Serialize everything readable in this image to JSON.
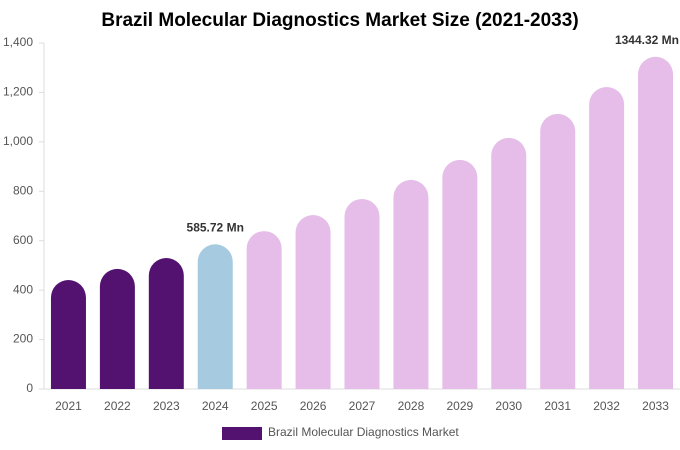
{
  "chart_data": {
    "type": "bar",
    "title": "Brazil Molecular Diagnostics Market Size (2021-2033)",
    "categories": [
      "2021",
      "2022",
      "2023",
      "2024",
      "2025",
      "2026",
      "2027",
      "2028",
      "2029",
      "2030",
      "2031",
      "2032",
      "2033"
    ],
    "series": [
      {
        "name": "Brazil Molecular Diagnostics Market",
        "color": "#541270",
        "colors": [
          "#541270",
          "#541270",
          "#541270",
          "#a6cadf",
          "#e6bde9",
          "#e6bde9",
          "#e6bde9",
          "#e6bde9",
          "#e6bde9",
          "#e6bde9",
          "#e6bde9",
          "#e6bde9",
          "#e6bde9"
        ],
        "values": [
          441,
          486,
          530,
          585.72,
          639,
          704,
          769,
          846,
          927,
          1016,
          1113,
          1222,
          1344.32
        ],
        "value_labels": [
          null,
          null,
          null,
          "585.72 Mn",
          null,
          null,
          null,
          null,
          null,
          null,
          null,
          null,
          "1344.32 Mn"
        ]
      }
    ],
    "ylim": [
      0,
      1400
    ],
    "yticks": [
      0,
      200,
      400,
      600,
      800,
      {
        "value": 1000,
        "label": "1,000"
      },
      {
        "value": 1200,
        "label": "1,200"
      },
      {
        "value": 1400,
        "label": "1,400"
      }
    ],
    "grid": false
  }
}
